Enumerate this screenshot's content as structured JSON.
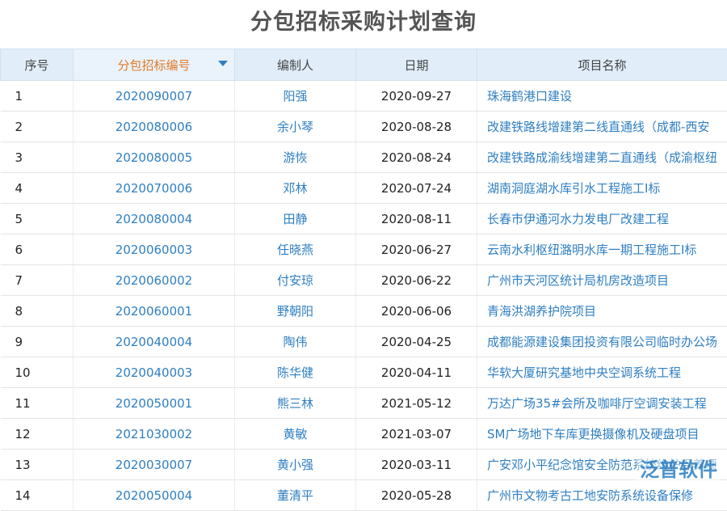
{
  "title": "分包招标采购计划查询",
  "table": {
    "headers": [
      "序号",
      "分包招标编号",
      "编制人",
      "日期",
      "项目名称"
    ],
    "rows": [
      [
        "1",
        "2020090007",
        "阳强",
        "2020-09-27",
        "珠海鹤港口建设"
      ],
      [
        "2",
        "2020080006",
        "余小琴",
        "2020-08-28",
        "改建铁路线增建第二线直通线（成都-西安"
      ],
      [
        "3",
        "2020080005",
        "游恢",
        "2020-08-24",
        "改建铁路成渝线增建第二直通线（成渝枢纽"
      ],
      [
        "4",
        "2020070006",
        "邓林",
        "2020-07-24",
        "湖南洞庭湖水库引水工程施工I标"
      ],
      [
        "5",
        "2020080004",
        "田静",
        "2020-08-11",
        "长春市伊通河水力发电厂改建工程"
      ],
      [
        "6",
        "2020060003",
        "任晓燕",
        "2020-06-27",
        "云南水利枢纽潞明水库一期工程施工I标"
      ],
      [
        "7",
        "2020060002",
        "付安琼",
        "2020-06-22",
        "广州市天河区统计局机房改造项目"
      ],
      [
        "8",
        "2020060001",
        "野朝阳",
        "2020-06-06",
        "青海洪湖养护院项目"
      ],
      [
        "9",
        "2020040004",
        "陶伟",
        "2020-04-25",
        "成都能源建设集团投资有限公司临时办公场"
      ],
      [
        "10",
        "2020040003",
        "陈华健",
        "2020-04-11",
        "华软大厦研究基地中央空调系统工程"
      ],
      [
        "11",
        "2020050001",
        "熊三林",
        "2021-05-12",
        "万达广场35#会所及咖啡厅空调安装工程"
      ],
      [
        "12",
        "2021030002",
        "黄敏",
        "2021-03-07",
        "SM广场地下车库更换摄像机及硬盘项目"
      ],
      [
        "13",
        "2020030007",
        "黄小强",
        "2020-03-11",
        "广安邓小平纪念馆安全防范系统维护保养项"
      ],
      [
        "14",
        "2020050004",
        "董清平",
        "2020-05-28",
        "广州市文物考古工地安防系统设备保修"
      ]
    ]
  },
  "watermark": "泛普软件"
}
